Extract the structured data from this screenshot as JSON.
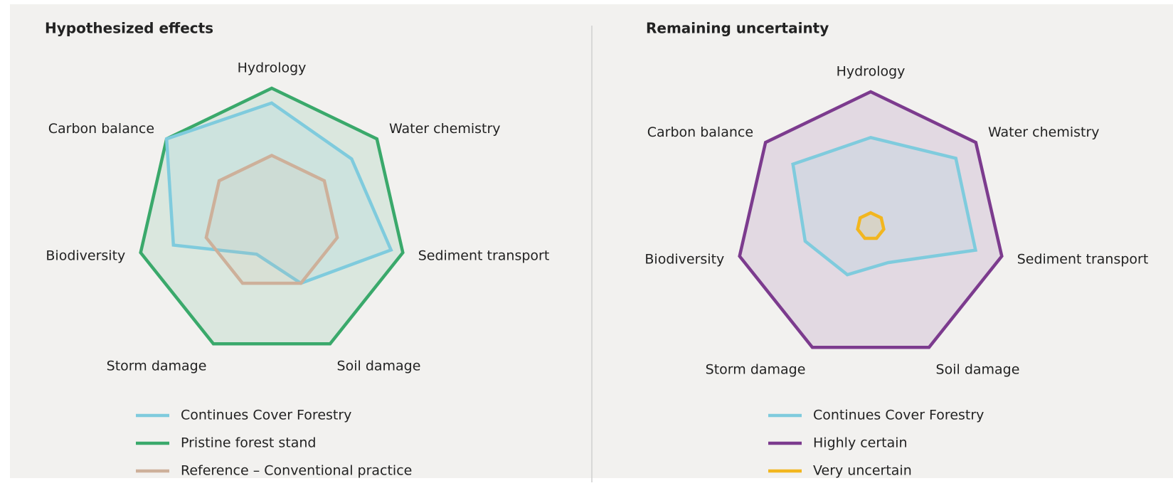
{
  "chart_data": [
    {
      "type": "radar",
      "title": "Hypothesized effects",
      "categories": [
        "Hydrology",
        "Water chemistry",
        "Sediment transport",
        "Soil damage",
        "Storm damage",
        "Biodiversity",
        "Carbon balance"
      ],
      "ylim": [
        0,
        100
      ],
      "series": [
        {
          "name": "Continues Cover Forestry",
          "color": "#7fcbdd",
          "values": [
            89,
            76,
            91,
            50,
            26,
            75,
            100
          ]
        },
        {
          "name": "Pristine forest stand",
          "color": "#3aa96b",
          "values": [
            100,
            100,
            100,
            100,
            100,
            100,
            100
          ]
        },
        {
          "name": "Reference – Conventional practice",
          "color": "#cdb09a",
          "values": [
            50,
            50,
            50,
            50,
            50,
            50,
            50
          ]
        }
      ]
    },
    {
      "type": "radar",
      "title": "Remaining uncertainty",
      "categories": [
        "Hydrology",
        "Water chemistry",
        "Sediment transport",
        "Soil damage",
        "Storm damage",
        "Biodiversity",
        "Carbon balance"
      ],
      "ylim": [
        0,
        100
      ],
      "series": [
        {
          "name": "Continues Cover Forestry",
          "color": "#7fcbdd",
          "values": [
            66,
            81,
            80,
            30,
            40,
            50,
            74
          ]
        },
        {
          "name": "Highly certain",
          "color": "#7c3b8e",
          "values": [
            100,
            100,
            100,
            100,
            100,
            100,
            100
          ]
        },
        {
          "name": "Very uncertain",
          "color": "#f2b61f",
          "values": [
            10,
            10,
            10,
            10,
            10,
            10,
            10
          ]
        }
      ]
    }
  ]
}
